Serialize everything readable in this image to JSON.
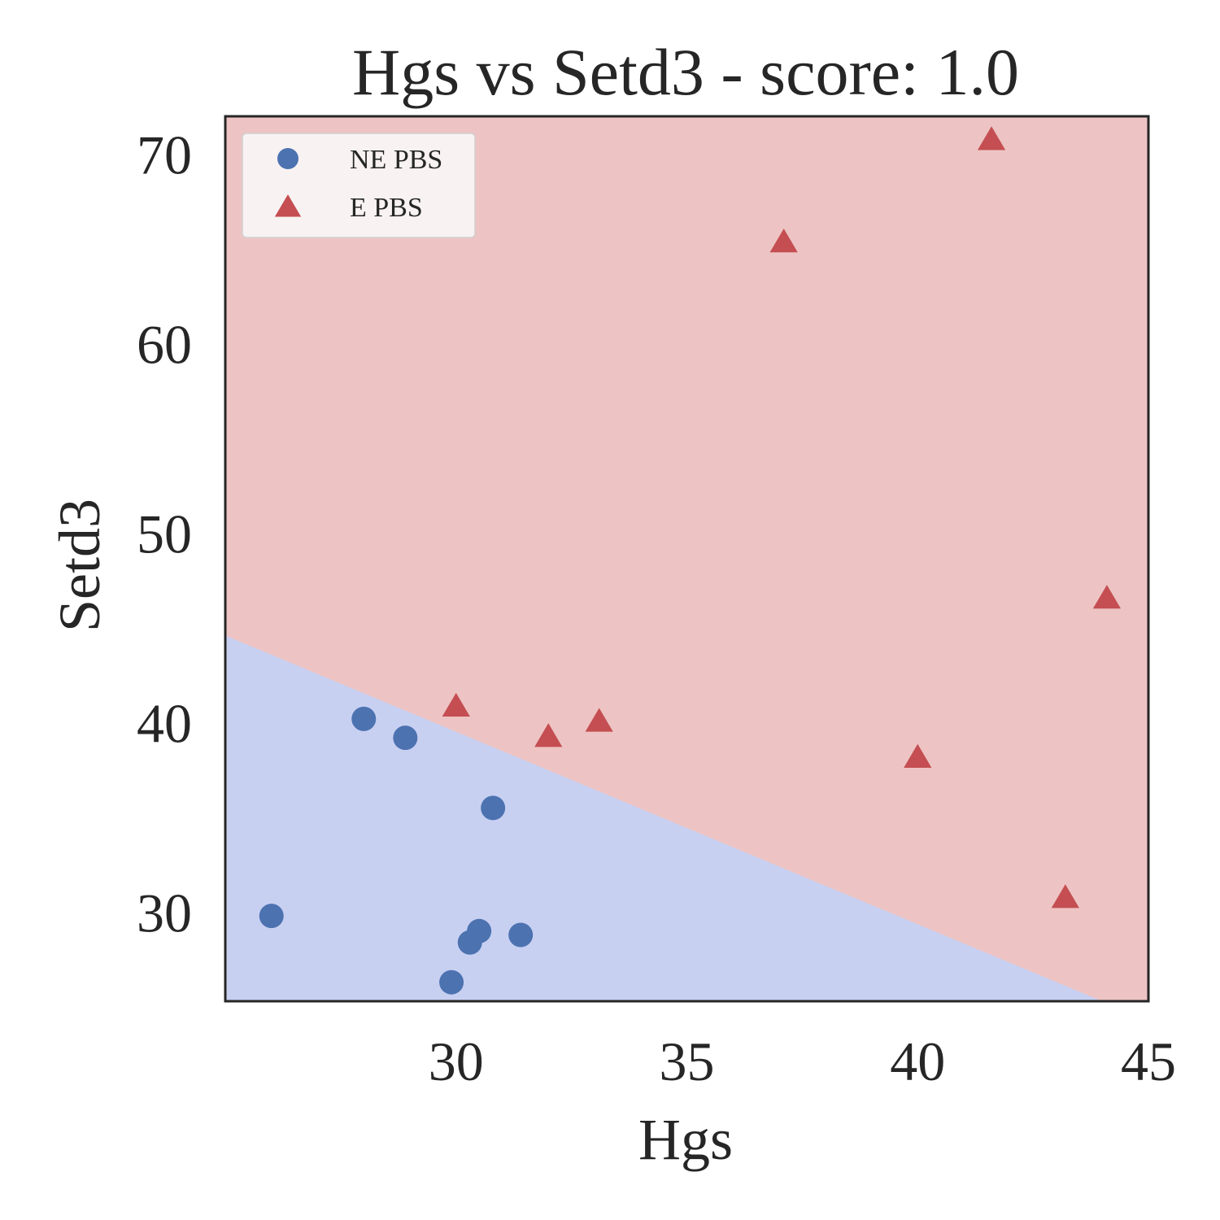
{
  "chart_data": {
    "type": "scatter",
    "title": "Hgs vs Setd3 - score: 1.0",
    "xlabel": "Hgs",
    "ylabel": "Setd3",
    "xlim": [
      25,
      45
    ],
    "ylim": [
      25.3,
      72
    ],
    "xticks": [
      "30",
      "35",
      "40",
      "45"
    ],
    "yticks": [
      "30",
      "40",
      "50",
      "60",
      "70"
    ],
    "grid": false,
    "legend_position": "top-left",
    "decision_boundary": {
      "points": [
        [
          25,
          44.6
        ],
        [
          44.0,
          25.3
        ]
      ],
      "below_region": "NE PBS",
      "above_region": "E PBS",
      "colors": {
        "below": "#c8d0f2",
        "above": "#edc4c3"
      }
    },
    "series": [
      {
        "name": "NE PBS",
        "marker": "circle",
        "color": "#4c72b0",
        "points": [
          [
            26.0,
            29.8
          ],
          [
            28.0,
            40.2
          ],
          [
            28.9,
            39.2
          ],
          [
            30.8,
            35.5
          ],
          [
            30.5,
            29.0
          ],
          [
            30.3,
            28.4
          ],
          [
            31.4,
            28.8
          ],
          [
            29.9,
            26.3
          ]
        ]
      },
      {
        "name": "E PBS",
        "marker": "triangle",
        "color": "#c44e52",
        "points": [
          [
            30.0,
            40.8
          ],
          [
            32.0,
            39.2
          ],
          [
            33.1,
            40.0
          ],
          [
            37.1,
            65.3
          ],
          [
            40.0,
            38.1
          ],
          [
            41.6,
            70.7
          ],
          [
            43.2,
            30.7
          ],
          [
            44.1,
            46.5
          ]
        ]
      }
    ]
  }
}
